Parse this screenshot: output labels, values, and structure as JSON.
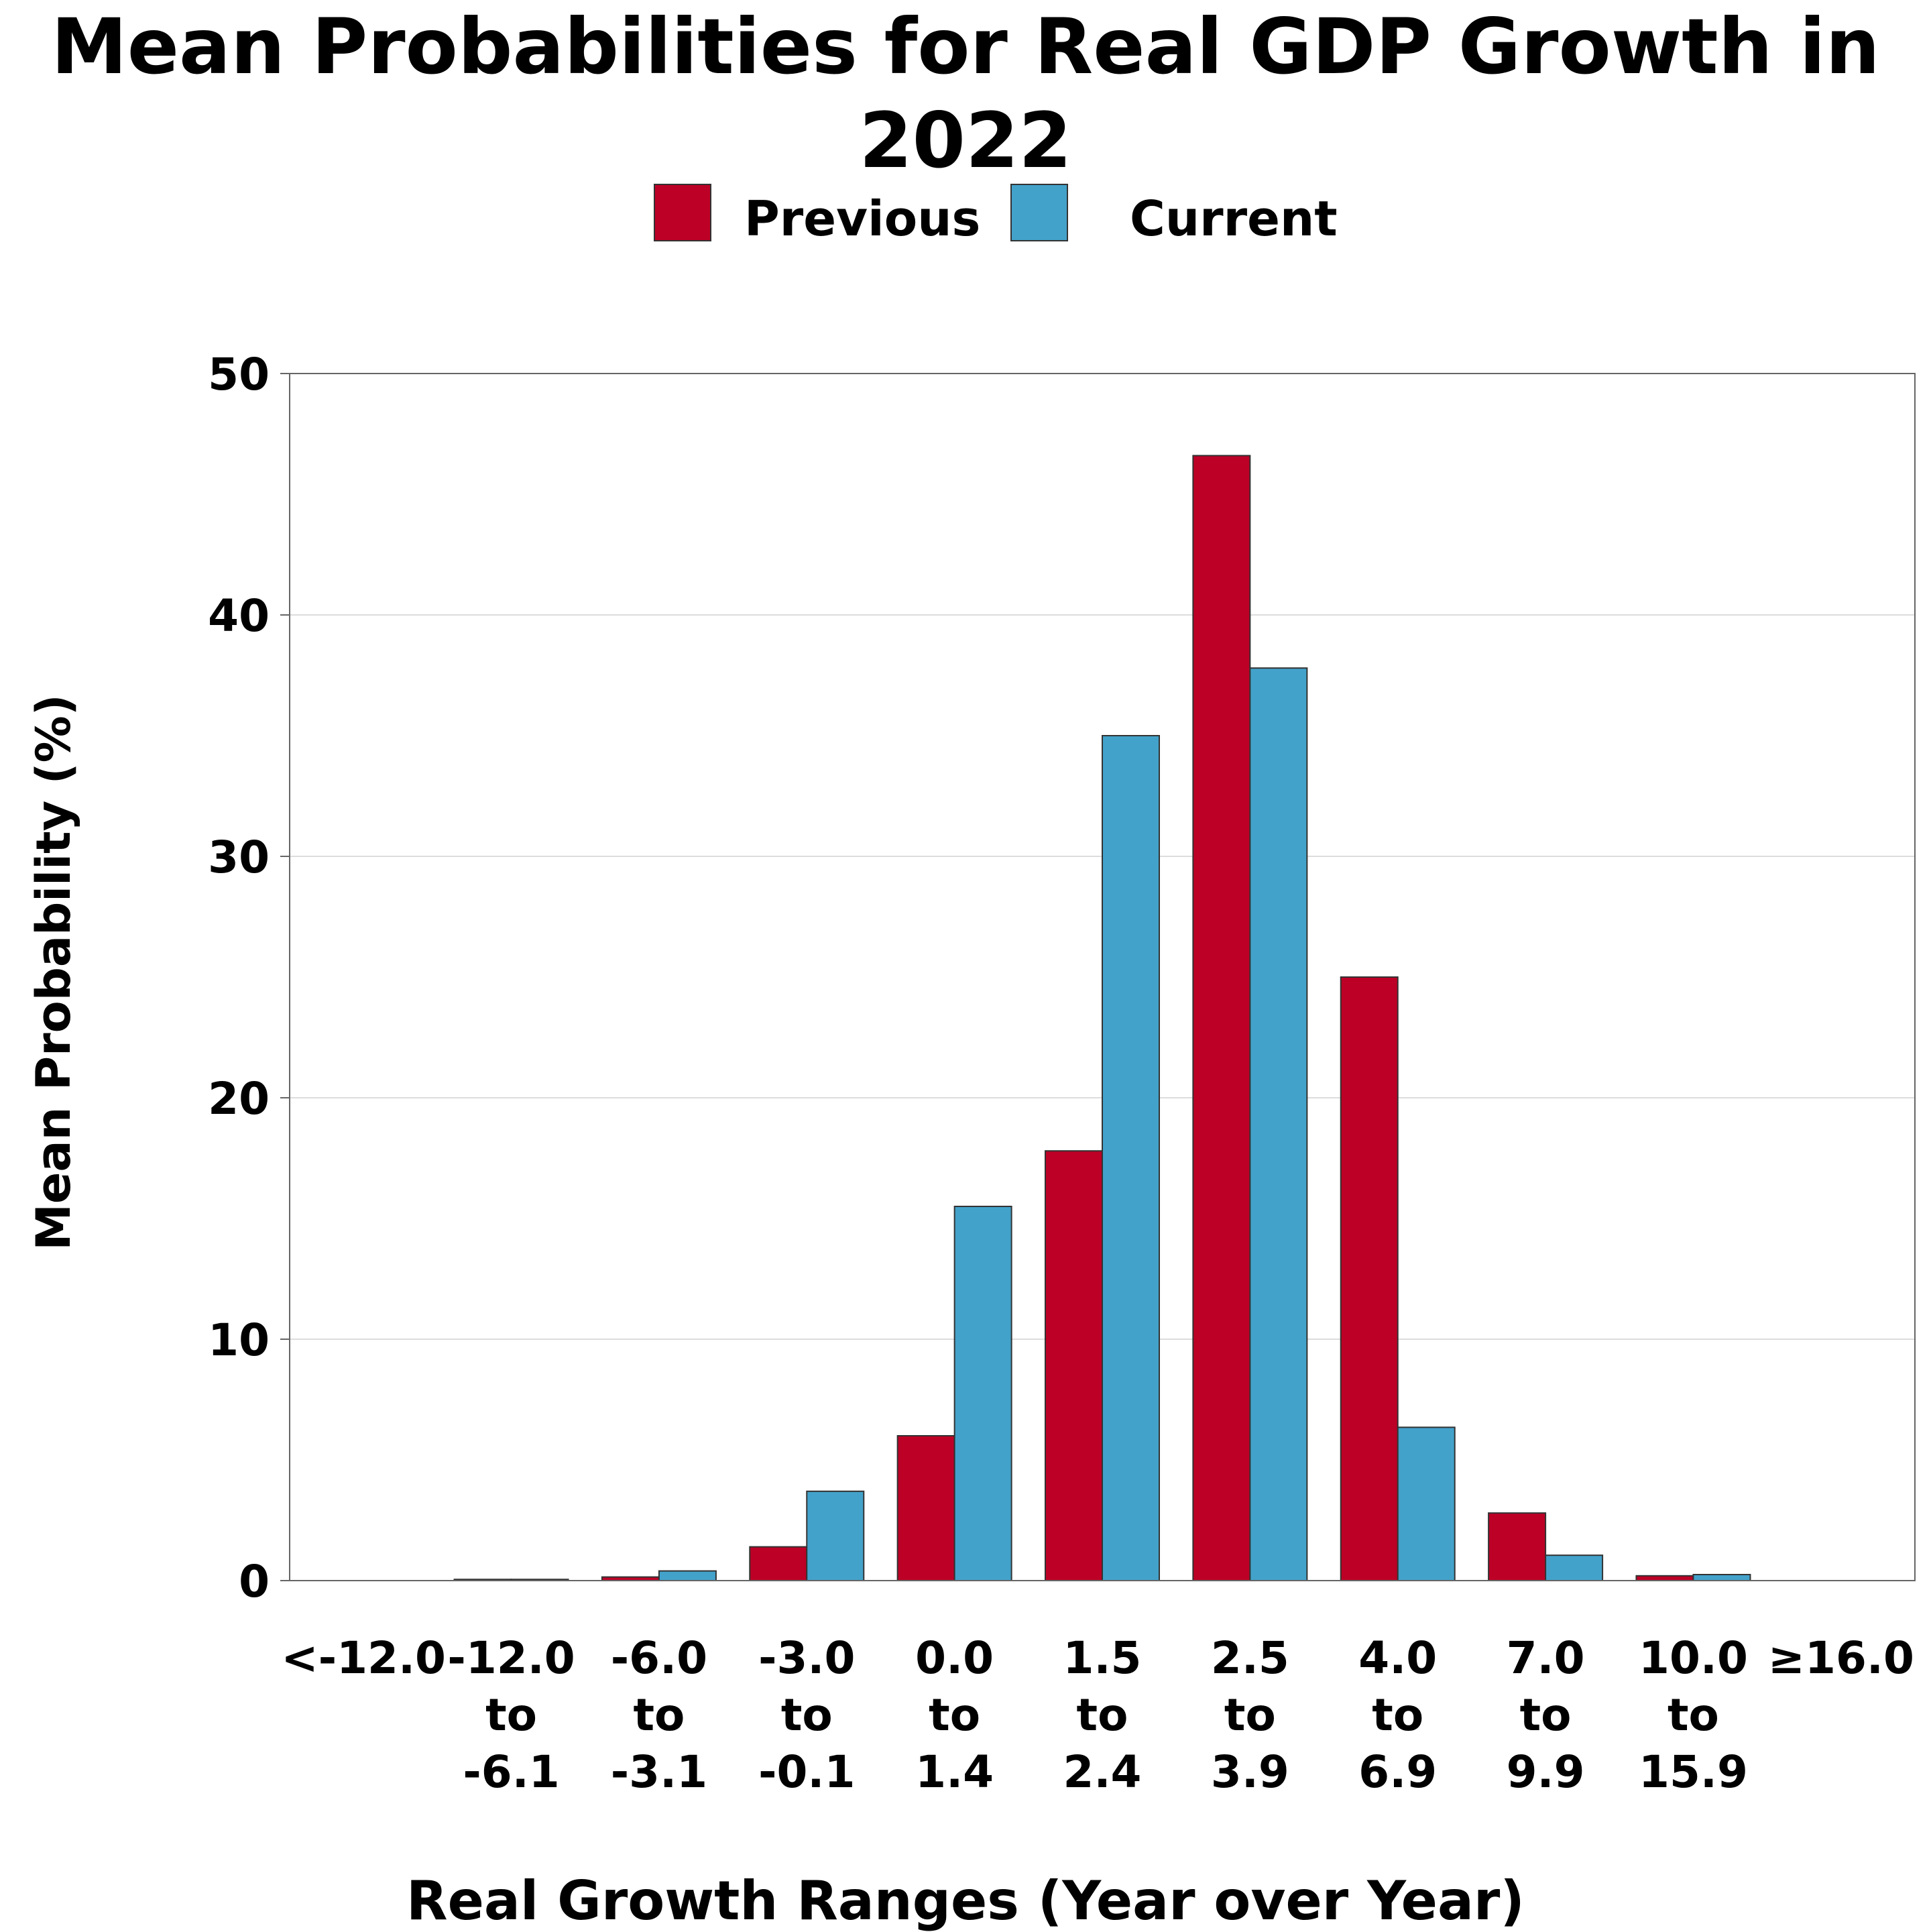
{
  "chart_data": {
    "type": "bar",
    "title": "Mean Probabilities for Real GDP Growth in 2022",
    "xlabel": "Real Growth Ranges (Year over Year)",
    "ylabel": "Mean Probability (%)",
    "ylim": [
      0,
      50
    ],
    "yticks": [
      0,
      10,
      20,
      30,
      40,
      50
    ],
    "grid": true,
    "legend_position": "top-center",
    "categories": [
      [
        "<-12.0"
      ],
      [
        "-12.0",
        "to",
        "-6.1"
      ],
      [
        "-6.0",
        "to",
        "-3.1"
      ],
      [
        "-3.0",
        "to",
        "-0.1"
      ],
      [
        "0.0",
        "to",
        "1.4"
      ],
      [
        "1.5",
        "to",
        "2.4"
      ],
      [
        "2.5",
        "to",
        "3.9"
      ],
      [
        "4.0",
        "to",
        "6.9"
      ],
      [
        "7.0",
        "to",
        "9.9"
      ],
      [
        "10.0",
        "to",
        "15.9"
      ],
      [
        "≥16.0"
      ]
    ],
    "series": [
      {
        "name": "Previous",
        "color": "#bd0026",
        "values": [
          0.0,
          0.05,
          0.15,
          1.4,
          6.0,
          17.8,
          46.6,
          25.0,
          2.8,
          0.2,
          0.0
        ]
      },
      {
        "name": "Current",
        "color": "#43a2ca",
        "values": [
          0.0,
          0.05,
          0.4,
          3.7,
          15.5,
          35.0,
          37.8,
          6.35,
          1.05,
          0.25,
          0.0
        ]
      }
    ]
  }
}
